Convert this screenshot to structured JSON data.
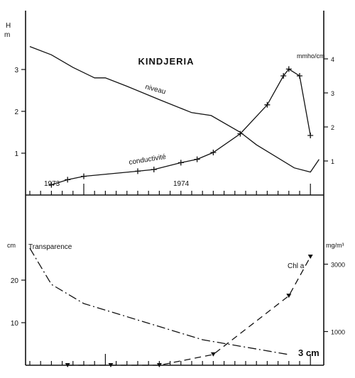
{
  "chart_data": [
    {
      "type": "line",
      "title": "KINDJERIA",
      "ylabel_left": "H",
      "ylabel_left_unit": "m",
      "ylabel_right": "mmho/cm",
      "left_ticks": [
        "1",
        "2",
        "3"
      ],
      "right_ticks": [
        "1",
        "2",
        "3",
        "4"
      ],
      "ylim_left": [
        0,
        4
      ],
      "ylim_right": [
        0,
        4.5
      ],
      "year_labels": [
        "1973",
        "1974"
      ],
      "series": [
        {
          "name": "niveau",
          "axis": "left",
          "marker": "none",
          "dash": "solid",
          "x": [
            0,
            2,
            4,
            6,
            7,
            9,
            12,
            15,
            16.8,
            19.5,
            21,
            24.5,
            26,
            26.8
          ],
          "y": [
            3.55,
            3.35,
            3.05,
            2.8,
            2.8,
            2.6,
            2.28,
            1.97,
            1.9,
            1.5,
            1.2,
            0.65,
            0.55,
            0.85
          ]
        },
        {
          "name": "conductivité",
          "axis": "right",
          "marker": "plus",
          "dash": "solid",
          "x": [
            2,
            3.5,
            5,
            10,
            11.5,
            14,
            15.5,
            17,
            19.5,
            22,
            23.5,
            24,
            25,
            26
          ],
          "y": [
            0.3,
            0.45,
            0.55,
            0.7,
            0.75,
            0.95,
            1.05,
            1.25,
            1.8,
            2.65,
            3.5,
            3.7,
            3.5,
            1.75
          ]
        }
      ]
    },
    {
      "type": "line",
      "ylabel_left": "cm",
      "ylabel_right": "mg/m³",
      "left_ticks": [
        "10",
        "20"
      ],
      "right_ticks": [
        "1000",
        "3000"
      ],
      "ylim_left": [
        0,
        28
      ],
      "ylim_right": [
        0,
        4000
      ],
      "series": [
        {
          "name": "Transparence",
          "axis": "left",
          "marker": "none",
          "dash": "dash-dot",
          "x": [
            0,
            2,
            5,
            16,
            24
          ],
          "y": [
            27.5,
            19,
            14.5,
            6,
            2.5
          ]
        },
        {
          "name": "Chl a",
          "axis": "right",
          "marker": "triangle",
          "dash": "dashed",
          "x": [
            3.5,
            7.5,
            12,
            17,
            24,
            26
          ],
          "y": [
            0,
            0,
            0,
            320,
            2060,
            3220
          ]
        }
      ],
      "annotations": [
        {
          "text": "3 cm",
          "x": 24.8,
          "y": 2.5
        }
      ]
    }
  ]
}
